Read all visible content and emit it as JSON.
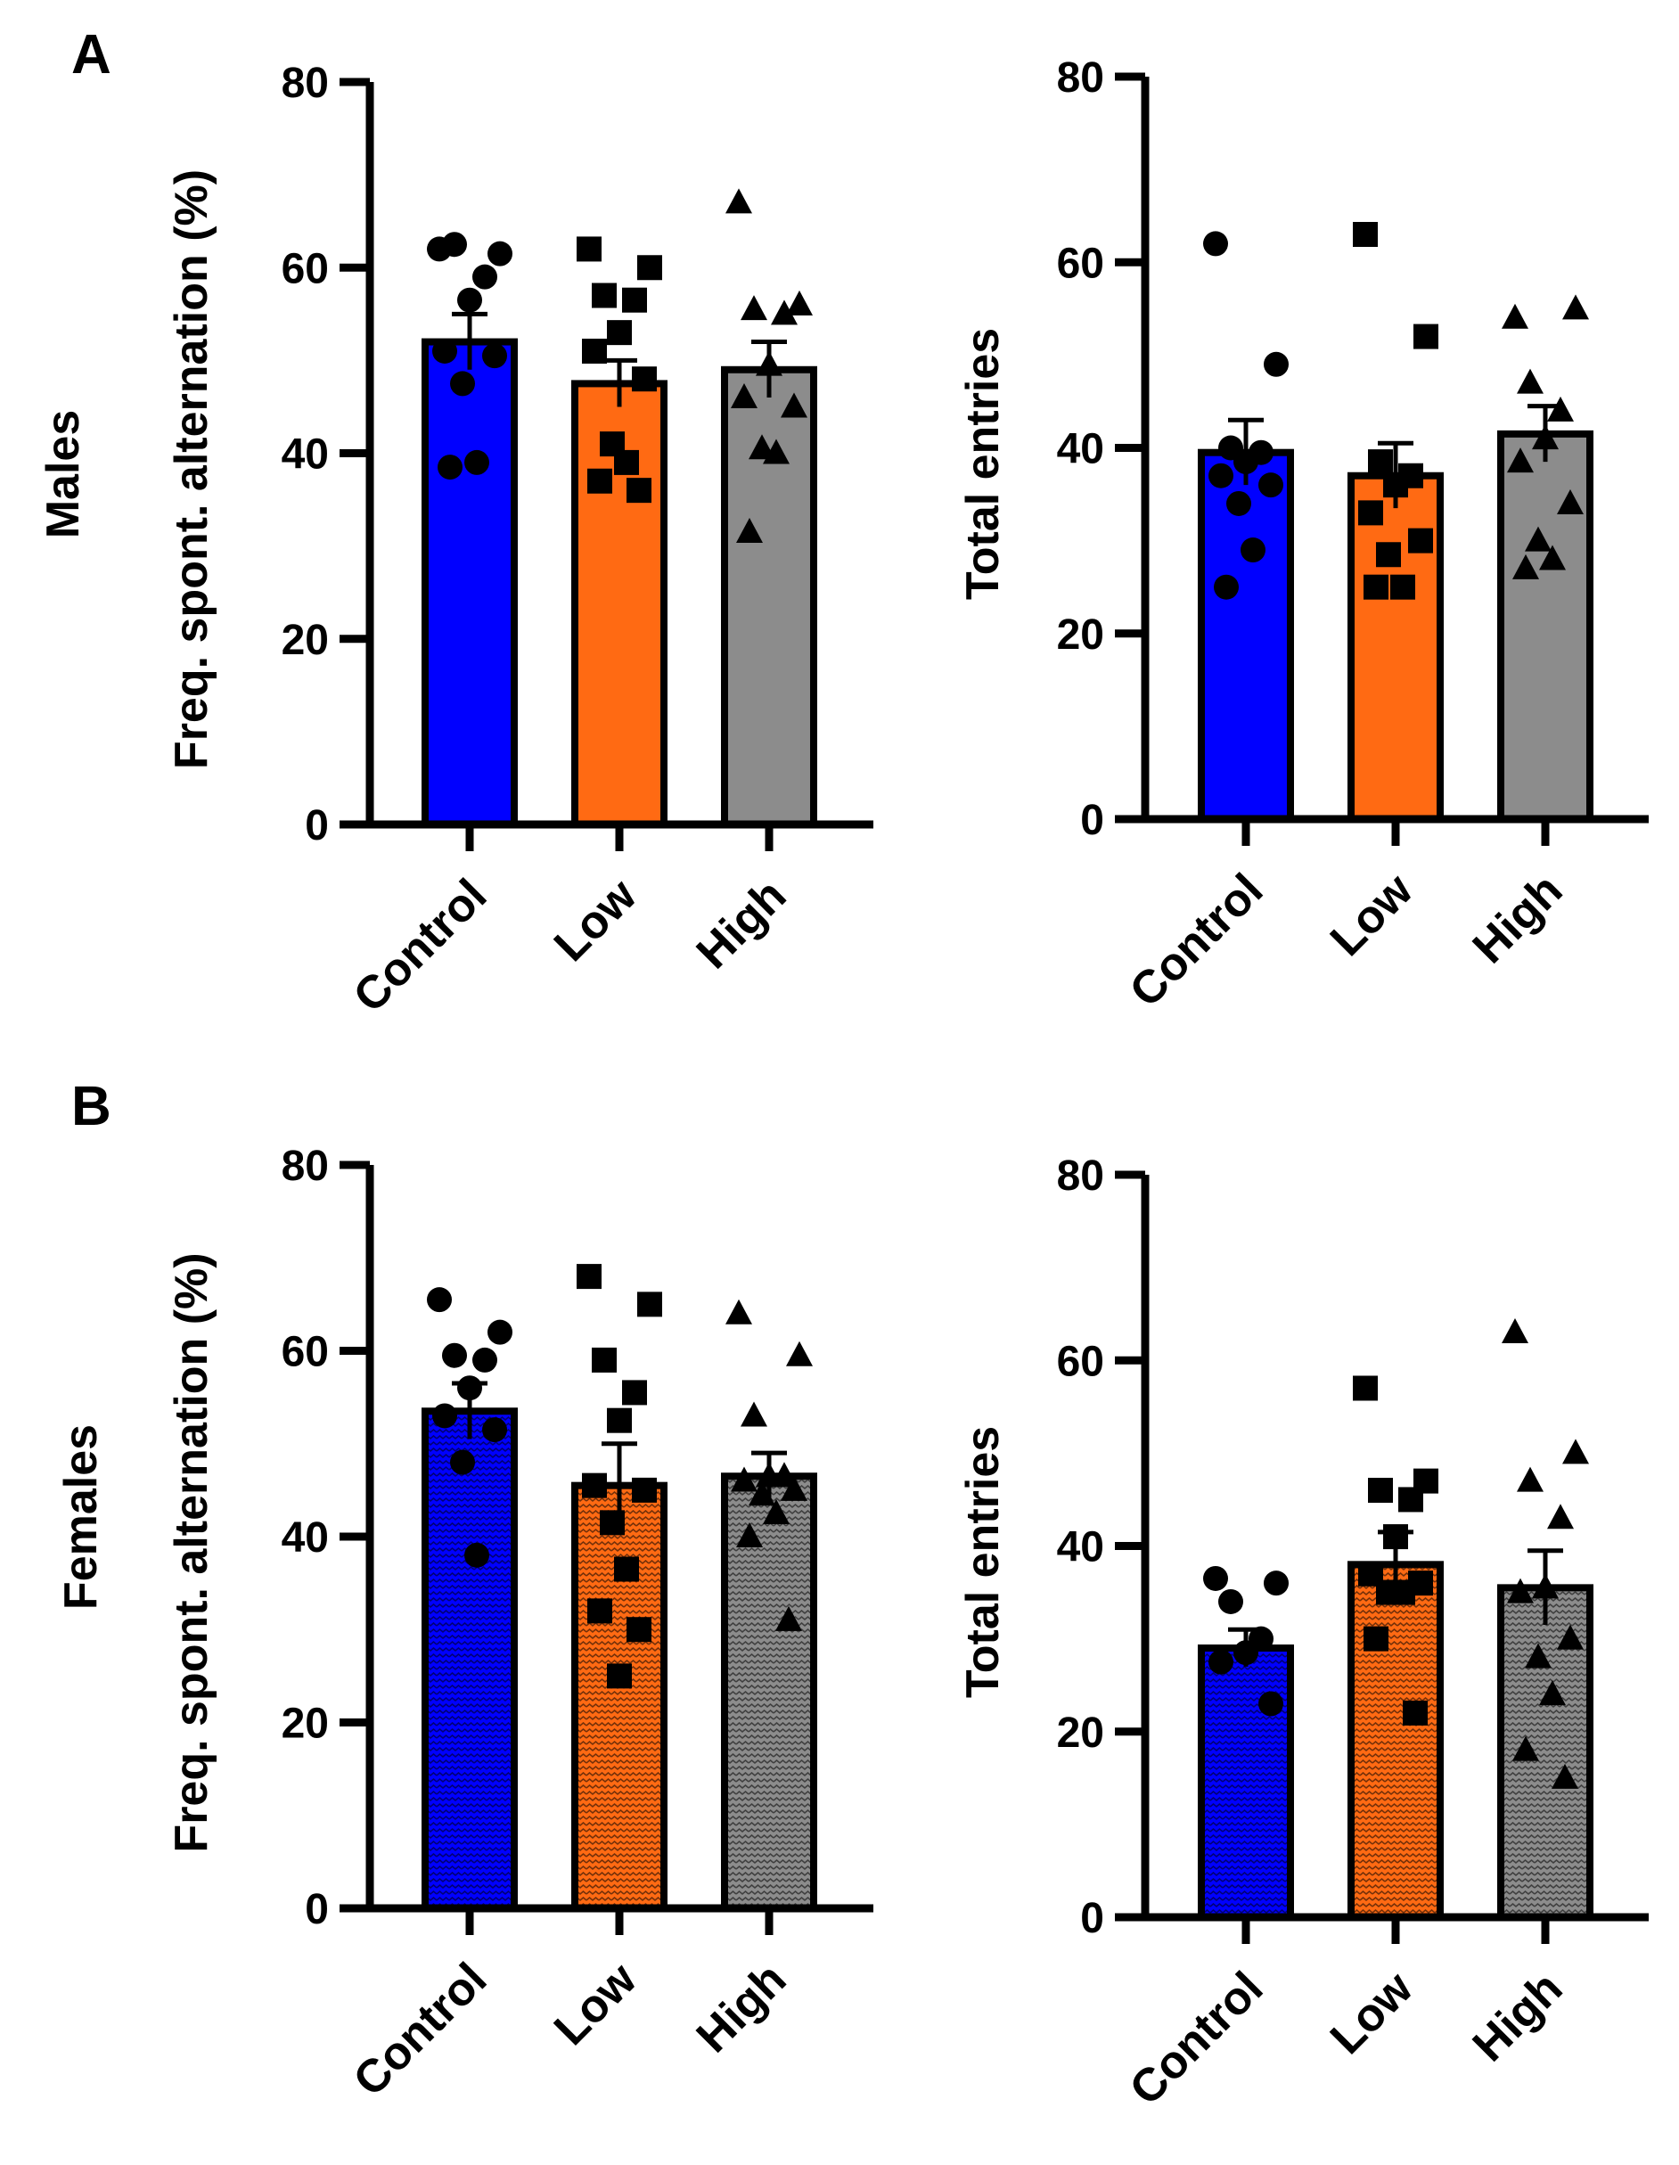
{
  "figure": {
    "panels": [
      {
        "letter": "A",
        "row_label": "Males"
      },
      {
        "letter": "B",
        "row_label": "Females"
      }
    ]
  },
  "colors": {
    "Control": "#0000ff",
    "Low": "#ff6a13",
    "High": "#8c8c8c",
    "axis": "#000000",
    "point": "#000000"
  },
  "chart_data": [
    {
      "type": "bar",
      "row": "A",
      "ylabel": "Freq. spont. alternation (%)",
      "ylim": [
        0,
        80
      ],
      "yticks": [
        0,
        20,
        40,
        60,
        80
      ],
      "categories": [
        "Control",
        "Low",
        "High"
      ],
      "values": [
        52,
        47.5,
        49
      ],
      "sem": [
        3,
        2.5,
        3
      ],
      "pattern": false,
      "markers": [
        "circle",
        "square",
        "triangle"
      ],
      "points": [
        [
          62,
          61.5,
          62.5,
          59,
          56.5,
          51,
          50.5,
          47.5,
          39,
          38.5
        ],
        [
          62,
          60,
          57,
          56.5,
          53,
          51,
          48,
          41,
          39,
          37,
          36
        ],
        [
          67,
          56,
          55.5,
          55,
          49.5,
          46,
          45,
          40.5,
          40,
          31.5
        ]
      ]
    },
    {
      "type": "bar",
      "row": "A",
      "ylabel": "Total entries",
      "ylim": [
        0,
        80
      ],
      "yticks": [
        0,
        20,
        40,
        60,
        80
      ],
      "categories": [
        "Control",
        "Low",
        "High"
      ],
      "values": [
        39.5,
        37,
        41.5
      ],
      "sem": [
        3.5,
        3.5,
        3
      ],
      "pattern": false,
      "markers": [
        "circle",
        "square",
        "triangle"
      ],
      "points": [
        [
          62,
          49,
          40,
          39.5,
          38.5,
          37,
          36,
          34,
          29,
          25
        ],
        [
          63,
          52,
          38.5,
          37,
          36,
          33,
          30,
          28.5,
          25,
          25
        ],
        [
          54,
          55,
          47,
          44,
          41,
          38.5,
          34,
          30,
          28,
          27
        ]
      ]
    },
    {
      "type": "bar",
      "row": "B",
      "ylabel": "Freq. spont. alternation (%)",
      "ylim": [
        0,
        80
      ],
      "yticks": [
        0,
        20,
        40,
        60,
        80
      ],
      "categories": [
        "Control",
        "Low",
        "High"
      ],
      "values": [
        53.5,
        45.5,
        46.5
      ],
      "sem": [
        3,
        4.5,
        2.5
      ],
      "pattern": true,
      "markers": [
        "circle",
        "square",
        "triangle"
      ],
      "points": [
        [
          65.5,
          62,
          59.5,
          59,
          56,
          53,
          51.5,
          48,
          38
        ],
        [
          68,
          65,
          59,
          55.5,
          52.5,
          45.5,
          45,
          41.5,
          36.5,
          32,
          30,
          25
        ],
        [
          64,
          59.5,
          53,
          46.5,
          46.5,
          46,
          45,
          44.5,
          42.5,
          40,
          31
        ]
      ]
    },
    {
      "type": "bar",
      "row": "B",
      "ylabel": "Total entries",
      "ylim": [
        0,
        80
      ],
      "yticks": [
        0,
        20,
        40,
        60,
        80
      ],
      "categories": [
        "Control",
        "Low",
        "High"
      ],
      "values": [
        29,
        38,
        35.5
      ],
      "sem": [
        2,
        3.5,
        4
      ],
      "pattern": true,
      "markers": [
        "circle",
        "square",
        "triangle"
      ],
      "points": [
        [
          36.5,
          36,
          34,
          30,
          28.5,
          27.5,
          23
        ],
        [
          57,
          47,
          46,
          45,
          41,
          37,
          36,
          35,
          35,
          30,
          22
        ],
        [
          63,
          50,
          47,
          43,
          35.5,
          35,
          30,
          28,
          24,
          18,
          15
        ]
      ]
    }
  ]
}
